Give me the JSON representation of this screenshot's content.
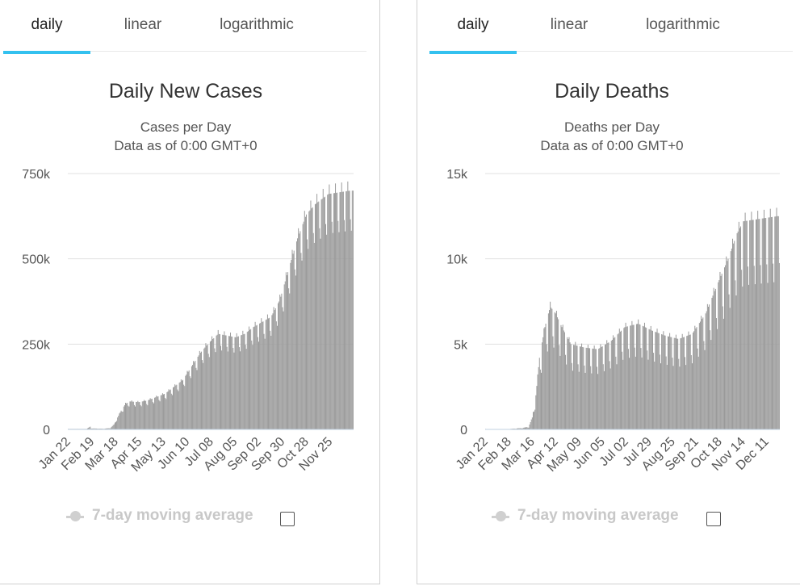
{
  "colors": {
    "accent": "#33c1ef",
    "bar": "#9a9a9a",
    "grid": "#e0e0e0",
    "legend_disabled": "#c8c8c8"
  },
  "panels": [
    {
      "tabs": [
        {
          "label": "daily",
          "active": true
        },
        {
          "label": "linear",
          "active": false
        },
        {
          "label": "logarithmic",
          "active": false
        }
      ],
      "legend_label": "7-day moving average"
    },
    {
      "tabs": [
        {
          "label": "daily",
          "active": true
        },
        {
          "label": "linear",
          "active": false
        },
        {
          "label": "logarithmic",
          "active": false
        }
      ],
      "legend_label": "7-day moving average"
    }
  ],
  "chart_data": [
    {
      "type": "bar",
      "title": "Daily New Cases",
      "subtitle": [
        "Cases per Day",
        "Data as of 0:00 GMT+0"
      ],
      "xlabel": "",
      "ylabel": "",
      "ylim": [
        0,
        750000
      ],
      "y_ticks": [
        0,
        250000,
        500000,
        750000
      ],
      "y_tick_labels": [
        "0",
        "250k",
        "500k",
        "750k"
      ],
      "x_start": "Jan 22",
      "x_tick_labels": [
        "Jan 22",
        "Feb 19",
        "Mar 18",
        "Apr 15",
        "May 13",
        "Jun 10",
        "Jul 08",
        "Aug 05",
        "Sep 02",
        "Sep 30",
        "Oct 28",
        "Nov 25"
      ],
      "legend": "7-day moving average",
      "series": [
        {
          "values_keyframes": [
            [
              0,
              0
            ],
            [
              20,
              0
            ],
            [
              25,
              8000
            ],
            [
              26,
              3000
            ],
            [
              40,
              2000
            ],
            [
              48,
              4000
            ],
            [
              52,
              15000
            ],
            [
              56,
              35000
            ],
            [
              60,
              55000
            ],
            [
              65,
              75000
            ],
            [
              70,
              82000
            ],
            [
              80,
              80000
            ],
            [
              90,
              85000
            ],
            [
              100,
              95000
            ],
            [
              110,
              105000
            ],
            [
              120,
              125000
            ],
            [
              130,
              145000
            ],
            [
              140,
              185000
            ],
            [
              150,
              225000
            ],
            [
              160,
              255000
            ],
            [
              170,
              280000
            ],
            [
              180,
              275000
            ],
            [
              190,
              270000
            ],
            [
              200,
              280000
            ],
            [
              210,
              300000
            ],
            [
              220,
              315000
            ],
            [
              230,
              330000
            ],
            [
              240,
              380000
            ],
            [
              250,
              470000
            ],
            [
              260,
              560000
            ],
            [
              270,
              630000
            ],
            [
              280,
              660000
            ],
            [
              295,
              690000
            ],
            [
              320,
              700000
            ]
          ],
          "day_count": 324,
          "weekly_dip": 0.12
        }
      ]
    },
    {
      "type": "bar",
      "title": "Daily Deaths",
      "subtitle": [
        "Deaths per Day",
        "Data as of 0:00 GMT+0"
      ],
      "xlabel": "",
      "ylabel": "",
      "ylim": [
        0,
        15000
      ],
      "y_ticks": [
        0,
        5000,
        10000,
        15000
      ],
      "y_tick_labels": [
        "0",
        "5k",
        "10k",
        "15k"
      ],
      "x_start": "Jan 22",
      "x_tick_labels": [
        "Jan 22",
        "Feb 18",
        "Mar 16",
        "Apr 12",
        "May 09",
        "Jun 05",
        "Jul 02",
        "Jul 29",
        "Aug 25",
        "Sep 21",
        "Oct 18",
        "Nov 14",
        "Dec 11"
      ],
      "legend": "7-day moving average",
      "series": [
        {
          "values_keyframes": [
            [
              0,
              0
            ],
            [
              25,
              20
            ],
            [
              40,
              80
            ],
            [
              48,
              150
            ],
            [
              52,
              700
            ],
            [
              56,
              2000
            ],
            [
              60,
              4200
            ],
            [
              66,
              6000
            ],
            [
              72,
              7200
            ],
            [
              78,
              6800
            ],
            [
              85,
              6000
            ],
            [
              95,
              5000
            ],
            [
              110,
              4800
            ],
            [
              125,
              4700
            ],
            [
              140,
              5200
            ],
            [
              155,
              6000
            ],
            [
              170,
              6200
            ],
            [
              185,
              5800
            ],
            [
              200,
              5500
            ],
            [
              215,
              5300
            ],
            [
              230,
              5600
            ],
            [
              245,
              6800
            ],
            [
              258,
              8500
            ],
            [
              270,
              10000
            ],
            [
              280,
              11500
            ],
            [
              287,
              12200
            ],
            [
              325,
              12500
            ]
          ],
          "day_count": 328,
          "weekly_dip": 0.22
        }
      ]
    }
  ]
}
